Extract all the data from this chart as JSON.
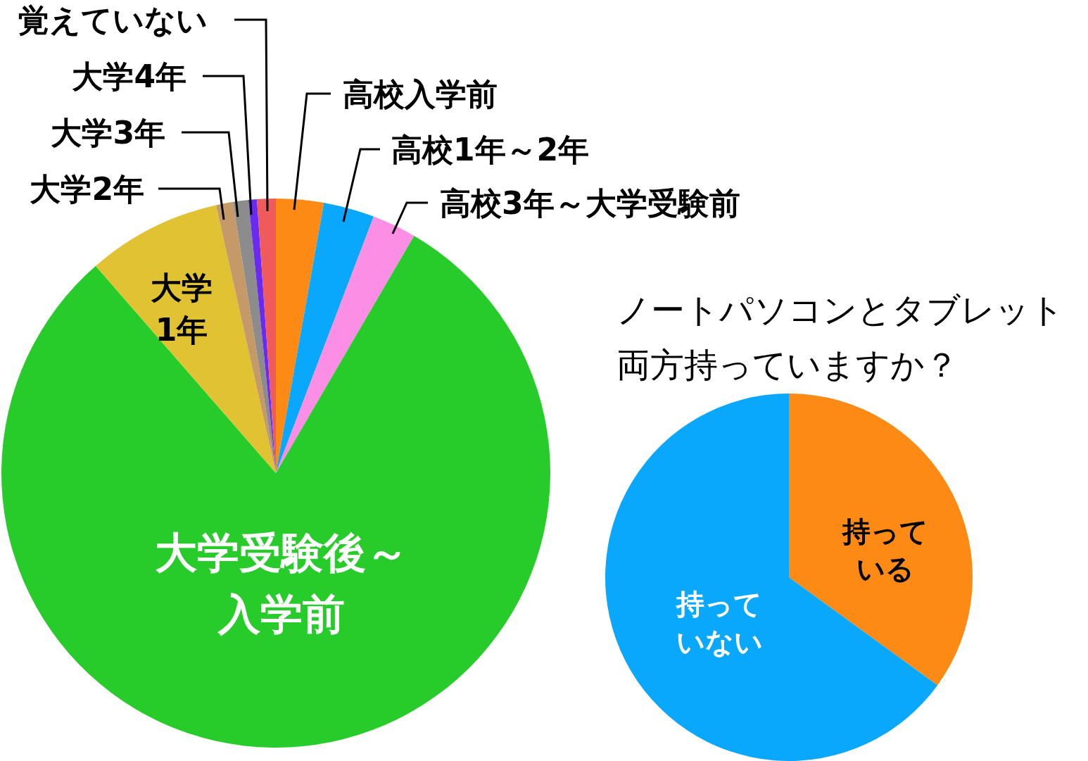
{
  "chart_data": [
    {
      "type": "pie",
      "categories": [
        "高校入学前",
        "高校1年～2年",
        "高校3年～大学受験前",
        "大学受験後～入学前",
        "大学1年",
        "大学2年",
        "大学3年",
        "大学4年",
        "覚えていない"
      ],
      "values": [
        2.8,
        3.0,
        2.6,
        80.2,
        7.9,
        1.0,
        0.9,
        0.5,
        1.1
      ],
      "colors": [
        "#fd8a15",
        "#0aa8fd",
        "#fd8ee6",
        "#27cc2a",
        "#e1c232",
        "#c69a68",
        "#8c8c8c",
        "#6b2af0",
        "#ef5a5a"
      ]
    },
    {
      "type": "pie",
      "title": "ノートパソコンとタブレット両方持っていますか？",
      "categories": [
        "持っている",
        "持っていない"
      ],
      "values": [
        35,
        65
      ],
      "colors": [
        "#fd8a15",
        "#0aa8fd"
      ]
    }
  ]
}
